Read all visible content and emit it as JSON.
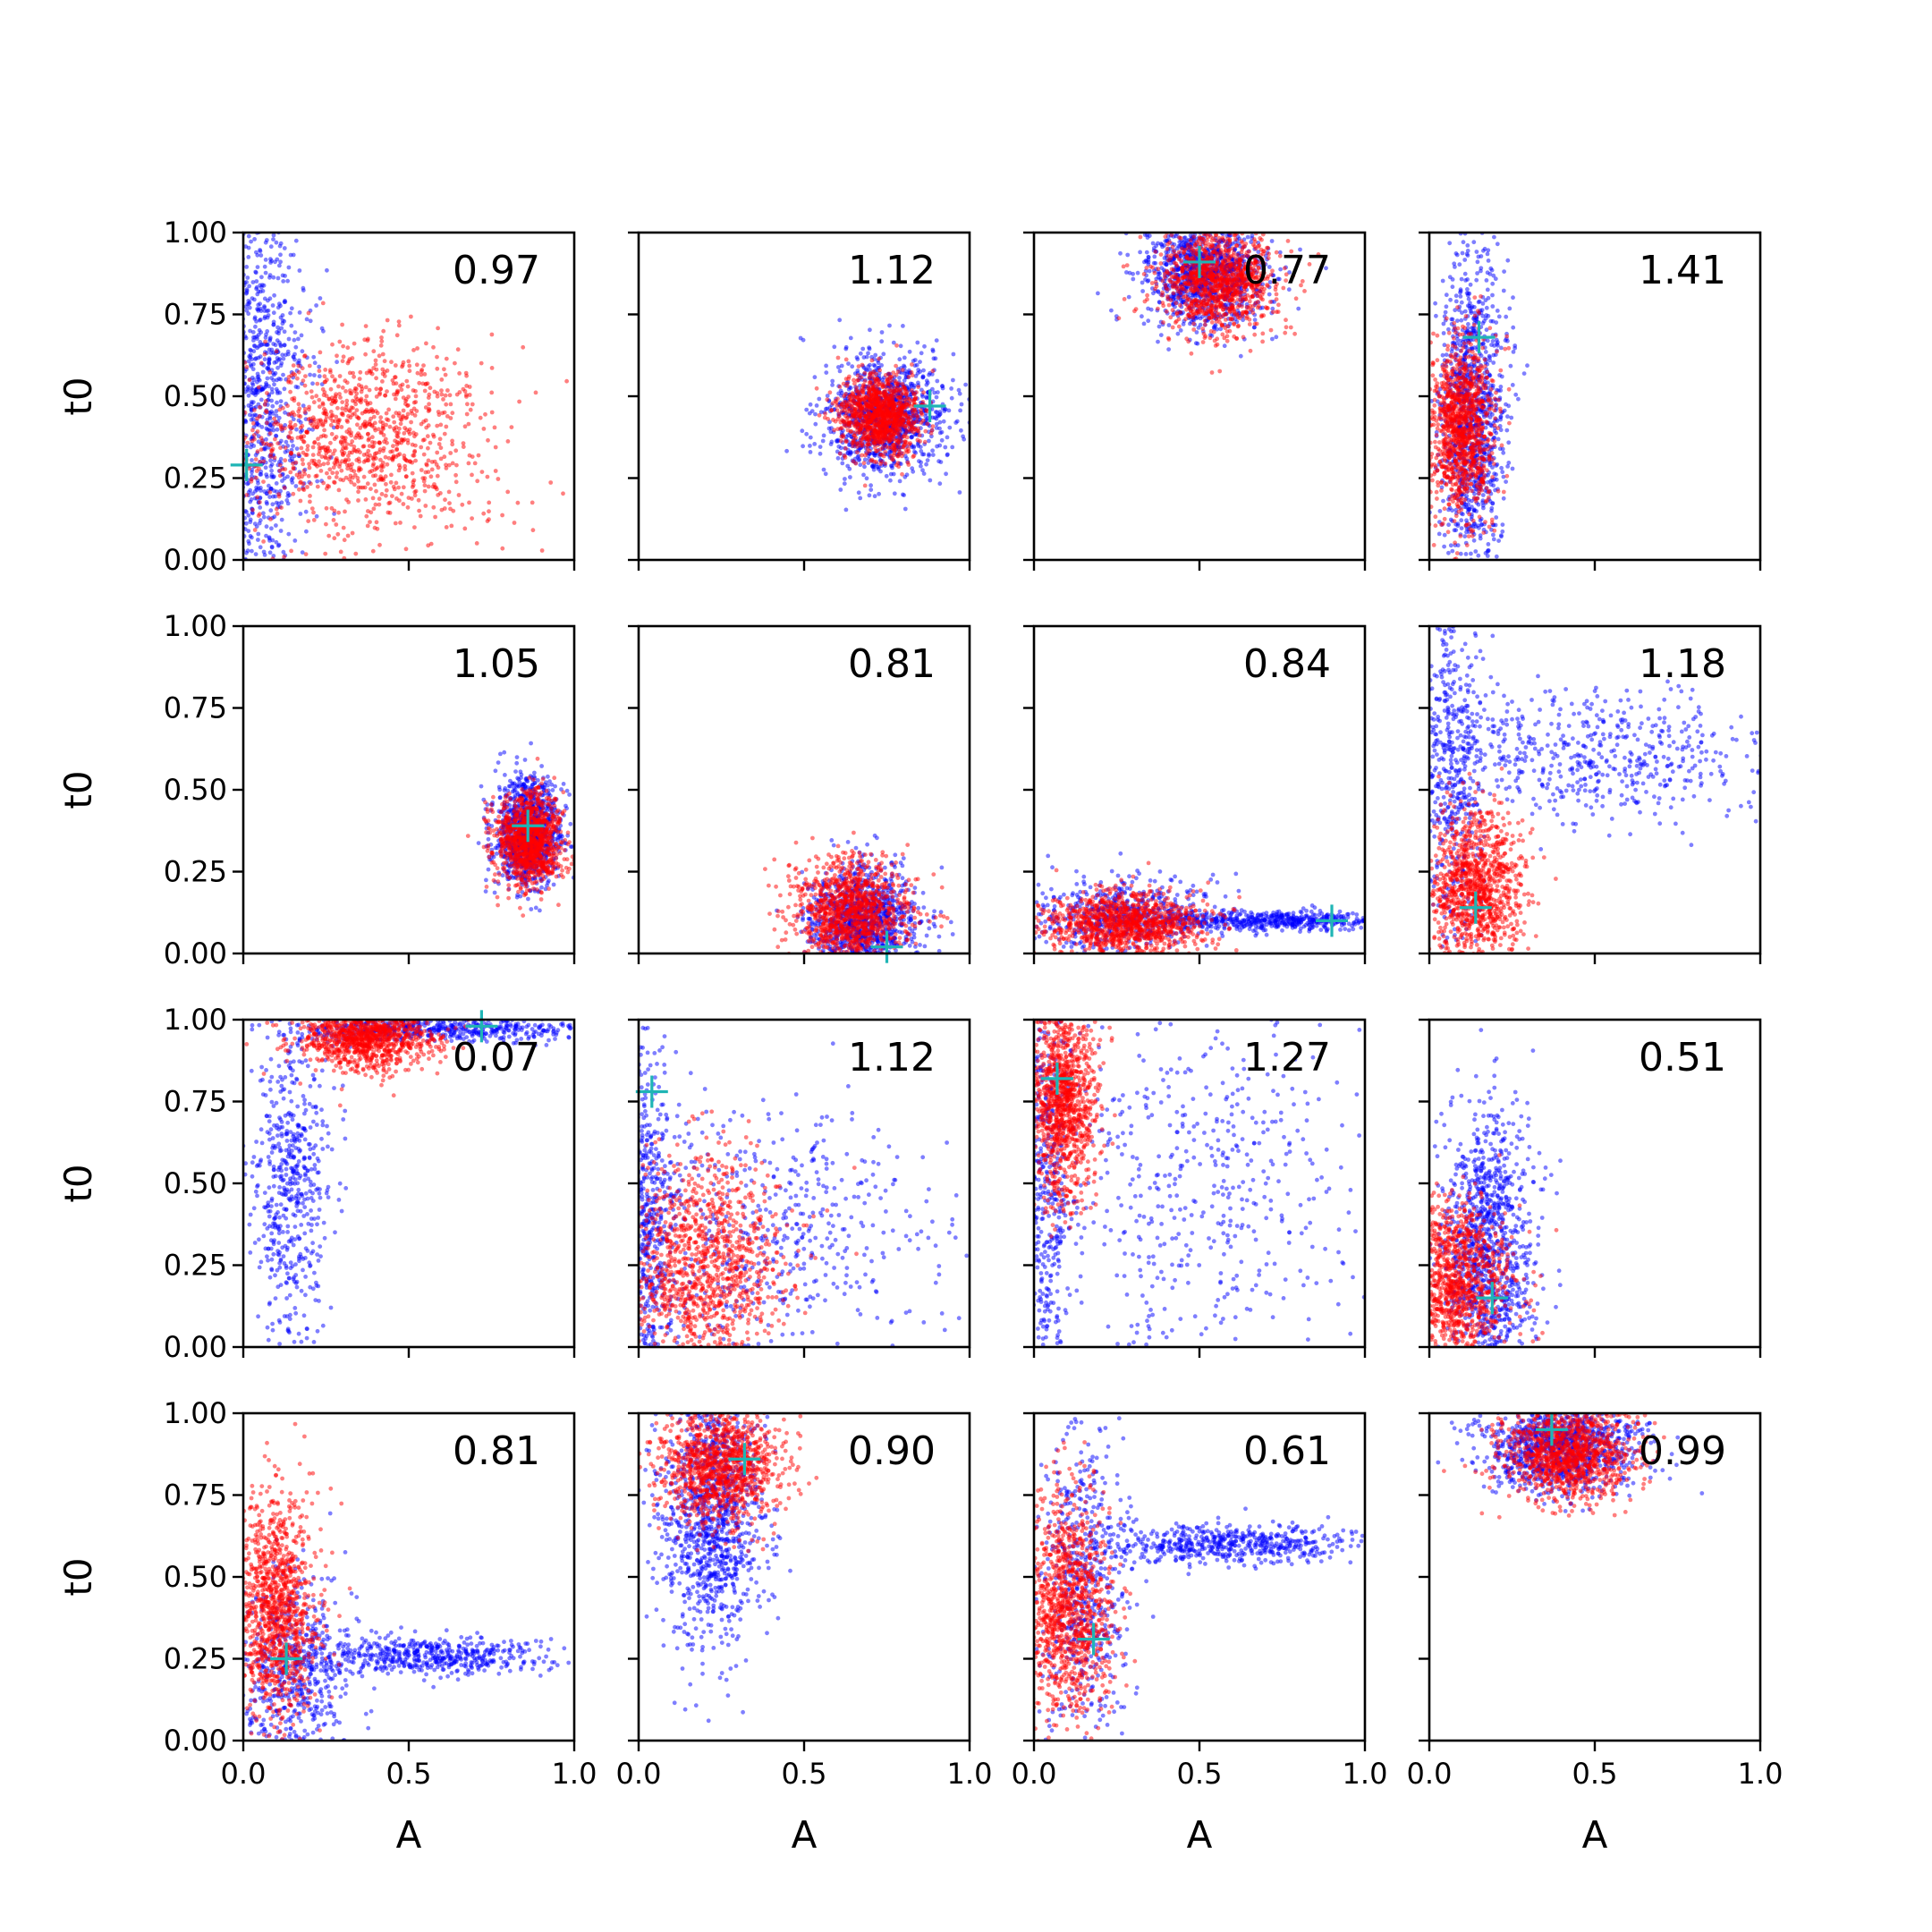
{
  "figure": {
    "xlabel": "A",
    "ylabel": "t0",
    "rows": 4,
    "cols": 4,
    "xlim": [
      0,
      1
    ],
    "ylim": [
      0,
      1
    ],
    "x_ticks": [
      "0.0",
      "0.5",
      "1.0"
    ],
    "y_ticks": [
      "0.00",
      "0.25",
      "0.50",
      "0.75",
      "1.00"
    ],
    "series_colors": {
      "blue": "#0000ff",
      "red": "#ff0000",
      "marker": "#1fb5b5"
    }
  },
  "chart_data": [
    {
      "type": "scatter",
      "annotation": "0.97",
      "marker": [
        0.01,
        0.29
      ],
      "blue": {
        "x": [
          0.05,
          0.03
        ],
        "y": [
          0.5,
          0.5
        ],
        "sx": [
          0.06,
          0.1
        ],
        "sy": [
          0.3,
          0.35
        ]
      },
      "red": {
        "x": [
          0.35
        ],
        "y": [
          0.37
        ],
        "sx": [
          0.2
        ],
        "sy": [
          0.15
        ]
      }
    },
    {
      "type": "scatter",
      "annotation": "1.12",
      "marker": [
        0.88,
        0.47
      ],
      "blue": {
        "x": [
          0.74
        ],
        "y": [
          0.44
        ],
        "sx": [
          0.09
        ],
        "sy": [
          0.09
        ]
      },
      "red": {
        "x": [
          0.73
        ],
        "y": [
          0.44
        ],
        "sx": [
          0.06
        ],
        "sy": [
          0.06
        ]
      }
    },
    {
      "type": "scatter",
      "annotation": "0.77",
      "marker": [
        0.5,
        0.91
      ],
      "blue": {
        "x": [
          0.52
        ],
        "y": [
          0.87
        ],
        "sx": [
          0.09
        ],
        "sy": [
          0.08
        ]
      },
      "red": {
        "x": [
          0.56
        ],
        "y": [
          0.85
        ],
        "sx": [
          0.09
        ],
        "sy": [
          0.08
        ]
      }
    },
    {
      "type": "scatter",
      "annotation": "1.41",
      "marker": [
        0.15,
        0.68
      ],
      "blue": {
        "x": [
          0.13
        ],
        "y": [
          0.45
        ],
        "sx": [
          0.05
        ],
        "sy": [
          0.25
        ]
      },
      "red": {
        "x": [
          0.1
        ],
        "y": [
          0.4
        ],
        "sx": [
          0.05
        ],
        "sy": [
          0.14
        ]
      }
    },
    {
      "type": "scatter",
      "annotation": "1.05",
      "marker": [
        0.86,
        0.39
      ],
      "blue": {
        "x": [
          0.86
        ],
        "y": [
          0.37
        ],
        "sx": [
          0.05
        ],
        "sy": [
          0.08
        ]
      },
      "red": {
        "x": [
          0.86
        ],
        "y": [
          0.35
        ],
        "sx": [
          0.05
        ],
        "sy": [
          0.07
        ]
      }
    },
    {
      "type": "scatter",
      "annotation": "0.81",
      "marker": [
        0.75,
        0.02
      ],
      "blue": {
        "x": [
          0.68
        ],
        "y": [
          0.1
        ],
        "sx": [
          0.08
        ],
        "sy": [
          0.08
        ]
      },
      "red": {
        "x": [
          0.64
        ],
        "y": [
          0.13
        ],
        "sx": [
          0.09
        ],
        "sy": [
          0.08
        ]
      }
    },
    {
      "type": "scatter",
      "annotation": "0.84",
      "marker": [
        0.9,
        0.1
      ],
      "blue": {
        "x": [
          0.25,
          0.7
        ],
        "y": [
          0.12,
          0.1
        ],
        "sx": [
          0.15,
          0.2
        ],
        "sy": [
          0.06,
          0.015
        ]
      },
      "red": {
        "x": [
          0.27
        ],
        "y": [
          0.09
        ],
        "sx": [
          0.12
        ],
        "sy": [
          0.05
        ]
      }
    },
    {
      "type": "scatter",
      "annotation": "1.18",
      "marker": [
        0.14,
        0.14
      ],
      "blue": {
        "x": [
          0.07,
          0.5
        ],
        "y": [
          0.6,
          0.6
        ],
        "sx": [
          0.05,
          0.25
        ],
        "sy": [
          0.3,
          0.1
        ]
      },
      "red": {
        "x": [
          0.14
        ],
        "y": [
          0.2
        ],
        "sx": [
          0.07
        ],
        "sy": [
          0.12
        ]
      }
    },
    {
      "type": "scatter",
      "annotation": "0.07",
      "marker": [
        0.72,
        0.98
      ],
      "blue": {
        "x": [
          0.6,
          0.15
        ],
        "y": [
          0.97,
          0.5
        ],
        "sx": [
          0.25,
          0.06
        ],
        "sy": [
          0.02,
          0.25
        ]
      },
      "red": {
        "x": [
          0.37
        ],
        "y": [
          0.95
        ],
        "sx": [
          0.1
        ],
        "sy": [
          0.05
        ]
      }
    },
    {
      "type": "scatter",
      "annotation": "1.12",
      "marker": [
        0.04,
        0.78
      ],
      "blue": {
        "x": [
          0.03,
          0.4
        ],
        "y": [
          0.35,
          0.35
        ],
        "sx": [
          0.04,
          0.25
        ],
        "sy": [
          0.3,
          0.2
        ]
      },
      "red": {
        "x": [
          0.2
        ],
        "y": [
          0.25
        ],
        "sx": [
          0.12
        ],
        "sy": [
          0.16
        ]
      }
    },
    {
      "type": "scatter",
      "annotation": "1.27",
      "marker": [
        0.07,
        0.82
      ],
      "blue": {
        "x": [
          0.03,
          0.5
        ],
        "y": [
          0.5,
          0.5
        ],
        "sx": [
          0.04,
          0.25
        ],
        "sy": [
          0.35,
          0.3
        ]
      },
      "red": {
        "x": [
          0.09
        ],
        "y": [
          0.75
        ],
        "sx": [
          0.05
        ],
        "sy": [
          0.15
        ]
      }
    },
    {
      "type": "scatter",
      "annotation": "0.51",
      "marker": [
        0.19,
        0.15
      ],
      "blue": {
        "x": [
          0.18
        ],
        "y": [
          0.3
        ],
        "sx": [
          0.07
        ],
        "sy": [
          0.22
        ]
      },
      "red": {
        "x": [
          0.08
        ],
        "y": [
          0.2
        ],
        "sx": [
          0.08
        ],
        "sy": [
          0.12
        ]
      }
    },
    {
      "type": "scatter",
      "annotation": "0.81",
      "marker": [
        0.13,
        0.25
      ],
      "blue": {
        "x": [
          0.15,
          0.55
        ],
        "y": [
          0.2,
          0.26
        ],
        "sx": [
          0.08,
          0.2
        ],
        "sy": [
          0.15,
          0.03
        ]
      },
      "red": {
        "x": [
          0.1
        ],
        "y": [
          0.4
        ],
        "sx": [
          0.06
        ],
        "sy": [
          0.18
        ]
      }
    },
    {
      "type": "scatter",
      "annotation": "0.90",
      "marker": [
        0.32,
        0.86
      ],
      "blue": {
        "x": [
          0.22
        ],
        "y": [
          0.7
        ],
        "sx": [
          0.08
        ],
        "sy": [
          0.2
        ]
      },
      "red": {
        "x": [
          0.25
        ],
        "y": [
          0.84
        ],
        "sx": [
          0.09
        ],
        "sy": [
          0.09
        ]
      }
    },
    {
      "type": "scatter",
      "annotation": "0.61",
      "marker": [
        0.18,
        0.31
      ],
      "blue": {
        "x": [
          0.15,
          0.6
        ],
        "y": [
          0.45,
          0.6
        ],
        "sx": [
          0.07,
          0.2
        ],
        "sy": [
          0.25,
          0.03
        ]
      },
      "red": {
        "x": [
          0.1
        ],
        "y": [
          0.4
        ],
        "sx": [
          0.07
        ],
        "sy": [
          0.17
        ]
      }
    },
    {
      "type": "scatter",
      "annotation": "0.99",
      "marker": [
        0.37,
        0.95
      ],
      "blue": {
        "x": [
          0.4
        ],
        "y": [
          0.9
        ],
        "sx": [
          0.12
        ],
        "sy": [
          0.07
        ]
      },
      "red": {
        "x": [
          0.42
        ],
        "y": [
          0.88
        ],
        "sx": [
          0.1
        ],
        "sy": [
          0.07
        ]
      }
    }
  ]
}
